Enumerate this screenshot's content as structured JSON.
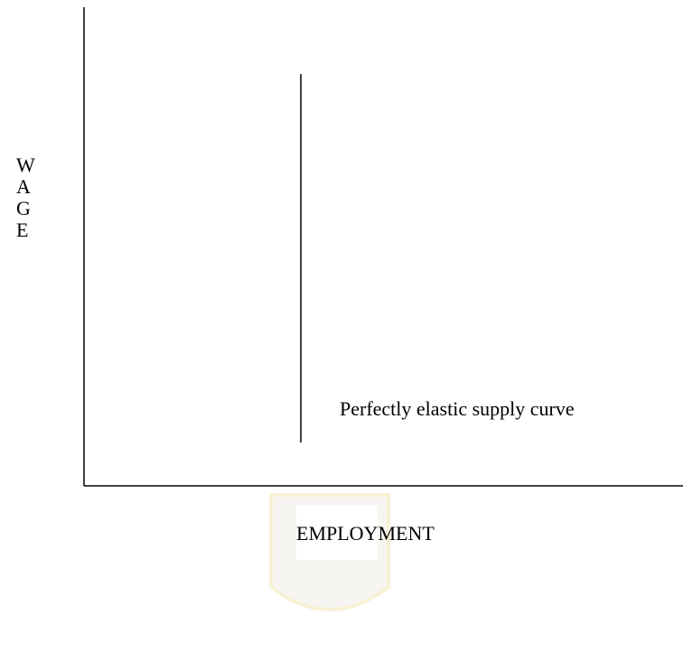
{
  "diagram": {
    "y_axis_label": [
      "W",
      "A",
      "G",
      "E"
    ],
    "x_axis_label": "EMPLOYMENT",
    "annotation": "Perfectly elastic supply curve"
  }
}
